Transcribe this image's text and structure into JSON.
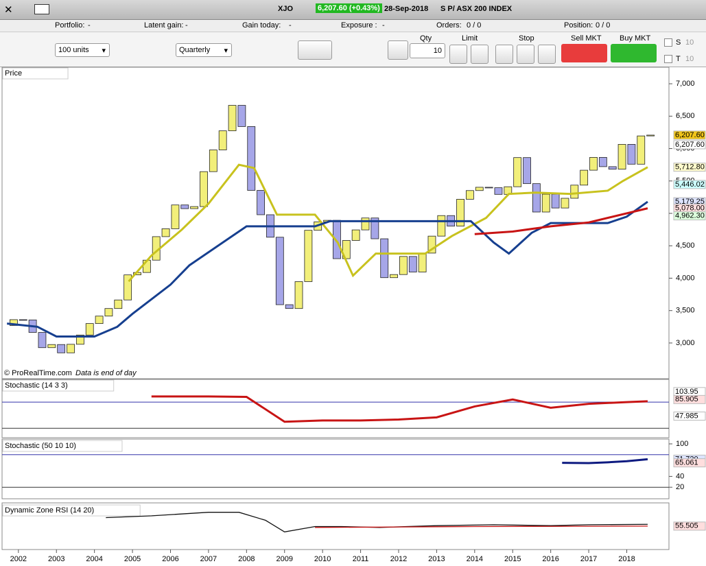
{
  "title_bar": {
    "symbol": "XJO",
    "price": "6,207.60 (+0.43%)",
    "date": "28-Sep-2018",
    "name": "S P/ ASX 200 INDEX"
  },
  "summary": [
    [
      "Portfolio:",
      "-"
    ],
    [
      "Latent gain:",
      "-"
    ],
    [
      "Gain today:",
      "-"
    ],
    [
      "Exposure :",
      "-"
    ],
    [
      "Orders:",
      "0 / 0"
    ],
    [
      "Position:",
      "0 / 0"
    ]
  ],
  "toolbar": {
    "units": "100 units",
    "period": "Quarterly",
    "qty_label": "Qty",
    "qty": "10",
    "limit": "Limit",
    "stop": "Stop",
    "sell": "Sell MKT",
    "buy": "Buy MKT",
    "s": "S",
    "s_value": "10",
    "t": "T",
    "t_value": "10"
  },
  "footer": {
    "copyright": "© ProRealTime.com",
    "note": "Data is end of day"
  },
  "chart_data": [
    {
      "type": "candlestick",
      "title": "Price",
      "up_color": "#f2ef7a",
      "down_color": "#a6a6e8",
      "x": [
        2001.875,
        2002.125,
        2002.375,
        2002.625,
        2002.875,
        2003.125,
        2003.375,
        2003.625,
        2003.875,
        2004.125,
        2004.375,
        2004.625,
        2004.875,
        2005.125,
        2005.375,
        2005.625,
        2005.875,
        2006.125,
        2006.375,
        2006.625,
        2006.875,
        2007.125,
        2007.375,
        2007.625,
        2007.875,
        2008.125,
        2008.375,
        2008.625,
        2008.875,
        2009.125,
        2009.375,
        2009.625,
        2009.875,
        2010.125,
        2010.375,
        2010.625,
        2010.875,
        2011.125,
        2011.375,
        2011.625,
        2011.875,
        2012.125,
        2012.375,
        2012.625,
        2012.875,
        2013.125,
        2013.375,
        2013.625,
        2013.875,
        2014.125,
        2014.375,
        2014.625,
        2014.875,
        2015.125,
        2015.375,
        2015.625,
        2015.875,
        2016.125,
        2016.375,
        2016.625,
        2016.875,
        2017.125,
        2017.375,
        2017.625,
        2017.875,
        2018.125,
        2018.375,
        2018.625
      ],
      "open": [
        3270,
        3360,
        3356,
        3163,
        2928,
        2976,
        2848,
        2980,
        3123,
        3300,
        3415,
        3532,
        3664,
        4051,
        4088,
        4278,
        4641,
        4763,
        5130,
        5073,
        5105,
        5644,
        5979,
        6274,
        6667,
        6340,
        5355,
        4979,
        4632,
        3591,
        3532,
        3947,
        4739,
        4870,
        4893,
        4301,
        4582,
        4745,
        4929,
        4608,
        4008,
        4056,
        4335,
        4095,
        4387,
        4649,
        4966,
        4803,
        5218,
        5352,
        5403,
        5396,
        5293,
        5411,
        5861,
        5459,
        5021,
        5296,
        5083,
        5233,
        5436,
        5666,
        5864,
        5721,
        5682,
        6065,
        5759,
        6195
      ],
      "close": [
        3360,
        3356,
        3163,
        2928,
        2976,
        2848,
        2980,
        3123,
        3300,
        3415,
        3532,
        3664,
        4051,
        4088,
        4278,
        4641,
        4763,
        5130,
        5073,
        5105,
        5644,
        5979,
        6274,
        6667,
        6340,
        5355,
        4979,
        4632,
        3591,
        3532,
        3947,
        4739,
        4870,
        4893,
        4301,
        4582,
        4745,
        4929,
        4608,
        4008,
        4056,
        4335,
        4095,
        4387,
        4649,
        4966,
        4803,
        5218,
        5352,
        5403,
        5396,
        5293,
        5411,
        5861,
        5459,
        5021,
        5296,
        5083,
        5233,
        5436,
        5666,
        5864,
        5721,
        5682,
        6065,
        5759,
        6195,
        6207.6
      ],
      "series": [
        {
          "color": "#c8c21e",
          "x": [
            2004.9,
            2005.5,
            2006.3,
            2007.0,
            2007.8,
            2008.2,
            2008.8,
            2009.8,
            2010.4,
            2010.8,
            2011.4,
            2012.7,
            2013.4,
            2014.3,
            2014.9,
            2015.6,
            2016.5,
            2017.5,
            2017.9,
            2018.55
          ],
          "values": [
            3950,
            4350,
            4750,
            5150,
            5750,
            5700,
            4980,
            4980,
            4550,
            4040,
            4380,
            4380,
            4650,
            4930,
            5300,
            5320,
            5300,
            5350,
            5500,
            5712.8
          ]
        },
        {
          "color": "#163f8f",
          "x": [
            2001.7,
            2002.5,
            2003,
            2004,
            2004.6,
            2005,
            2006,
            2006.5,
            2007.5,
            2008,
            2009.8,
            2010.2,
            2013.9,
            2014.5,
            2014.9,
            2015.5,
            2016,
            2016.5,
            2017.5,
            2018,
            2018.55
          ],
          "values": [
            3300,
            3250,
            3100,
            3100,
            3250,
            3450,
            3900,
            4200,
            4600,
            4800,
            4800,
            4880,
            4880,
            4550,
            4380,
            4700,
            4850,
            4850,
            4850,
            4950,
            5179.25
          ]
        },
        {
          "color": "#c81414",
          "x": [
            2014,
            2015,
            2016,
            2017,
            2018.55
          ],
          "values": [
            4680,
            4720,
            4800,
            4860,
            5078
          ]
        }
      ],
      "price_tags": [
        {
          "value": 6207.6,
          "label": "6,207.60",
          "color": "#f0c419"
        },
        {
          "value": 6207.6,
          "label": "6,207.60",
          "color": "#ffffff"
        },
        {
          "value": 5712.8,
          "label": "5,712.80",
          "color": "#fffbcc"
        },
        {
          "value": 5446.02,
          "label": "5,446.02",
          "color": "#ccffff"
        },
        {
          "value": 5179.25,
          "label": "5,179.25",
          "color": "#dde4ff"
        },
        {
          "value": 5078,
          "label": "5,078.00",
          "color": "#ffdede"
        },
        {
          "value": 4962.3,
          "label": "4,962.30",
          "color": "#ddffdd"
        }
      ],
      "ylim": [
        2470,
        7075
      ],
      "yticks": [
        {
          "value": 3000,
          "label": "3,000"
        },
        {
          "value": 3500,
          "label": "3,500"
        },
        {
          "value": 4000,
          "label": "4,000"
        },
        {
          "value": 4500,
          "label": "4,500"
        },
        {
          "value": 5000,
          "label": "5,000"
        },
        {
          "value": 5500,
          "label": "5,500"
        },
        {
          "value": 6000,
          "label": "6,000"
        },
        {
          "value": 6500,
          "label": "6,500"
        },
        {
          "value": 7000,
          "label": "7,000"
        }
      ],
      "xlim": [
        2001.57,
        2019.11
      ],
      "xticks": [
        2002,
        2003,
        2004,
        2005,
        2006,
        2007,
        2008,
        2009,
        2010,
        2011,
        2012,
        2013,
        2014,
        2015,
        2016,
        2017,
        2018
      ]
    },
    {
      "type": "line",
      "title": "Stochastic (14 3 3)",
      "ylim": [
        0,
        132
      ],
      "levels": [
        80,
        20
      ],
      "series": [
        {
          "color": "#c81414",
          "x": [
            2005.5,
            2007,
            2008,
            2009,
            2010,
            2011,
            2012,
            2013,
            2014,
            2015,
            2016,
            2017,
            2018,
            2018.55
          ],
          "values": [
            93,
            93,
            92,
            35,
            38,
            38,
            40,
            45,
            70,
            86,
            67,
            76,
            80,
            82
          ]
        }
      ],
      "price_tags": [
        {
          "value": 103.95,
          "label": "103.95",
          "color": "#ffffff"
        },
        {
          "value": 85.905,
          "label": "85.905",
          "color": "#ffdede"
        },
        {
          "value": 47.985,
          "label": "47.985",
          "color": "#ffffff"
        }
      ]
    },
    {
      "type": "line",
      "title": "Stochastic (50 10 10)",
      "ylim": [
        0,
        107.6
      ],
      "yticks": [
        100,
        40,
        20
      ],
      "levels": [
        80,
        20
      ],
      "series": [
        {
          "color": "#0d1a80",
          "x": [
            2016.3,
            2017,
            2017.5,
            2018,
            2018.55
          ],
          "values": [
            65,
            64.5,
            66,
            68,
            71.72
          ]
        }
      ],
      "price_tags": [
        {
          "value": 71.72,
          "label": "71.720",
          "color": "#dde4ff"
        },
        {
          "value": 65.061,
          "label": "65.061",
          "color": "#ffdede"
        }
      ]
    },
    {
      "type": "line",
      "title": "Dynamic Zone RSI (14 20)",
      "ylim": [
        30,
        80
      ],
      "series": [
        {
          "color": "#111111",
          "x": [
            2004.3,
            2005.5,
            2007,
            2007.8,
            2008.5,
            2009,
            2009.8,
            2010.5,
            2011.5,
            2013,
            2014.5,
            2016,
            2017,
            2018.55
          ],
          "values": [
            65,
            67,
            71,
            71,
            62,
            49,
            55,
            55,
            54,
            56,
            57,
            56,
            57,
            57.5
          ]
        },
        {
          "color": "#c81414",
          "x": [
            2009.8,
            2012,
            2014,
            2016,
            2018.55
          ],
          "values": [
            54,
            54.5,
            55,
            55.2,
            55.505
          ]
        }
      ],
      "price_tags": [
        {
          "value": 55.505,
          "label": "55.505",
          "color": "#ffdede"
        }
      ]
    }
  ]
}
